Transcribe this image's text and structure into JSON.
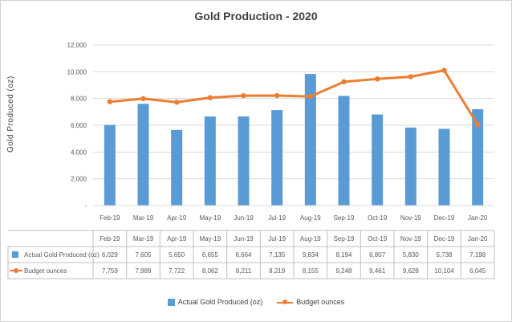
{
  "chart_data": {
    "type": "bar",
    "title": "Gold Production - 2020",
    "ylabel": "Gold Produced (oz)",
    "xlabel": "",
    "ylim": [
      0,
      12000
    ],
    "yticks": [
      "-",
      "2,000",
      "4,000",
      "6,000",
      "8,000",
      "10,000",
      "12,000"
    ],
    "categories": [
      "Feb-19",
      "Mar-19",
      "Apr-19",
      "May-19",
      "Jun-19",
      "Jul-19",
      "Aug-19",
      "Sep-19",
      "Oct-19",
      "Nov-19",
      "Dec-19",
      "Jan-20"
    ],
    "series": [
      {
        "name": "Actual Gold Produced (oz)",
        "kind": "bar",
        "color": "#5b9bd5",
        "values": [
          6029,
          7605,
          5650,
          6655,
          6664,
          7135,
          9834,
          8194,
          6807,
          5830,
          5738,
          7198
        ],
        "labels": [
          "6,029",
          "7,605",
          "5,650",
          "6,655",
          "6,664",
          "7,135",
          "9,834",
          "8,194",
          "6,807",
          "5,830",
          "5,738",
          "7,198"
        ]
      },
      {
        "name": "Budget ounces",
        "kind": "line",
        "color": "#ed7d31",
        "values": [
          7759,
          7989,
          7722,
          8062,
          8211,
          8219,
          8155,
          9248,
          9461,
          9628,
          10104,
          6045
        ],
        "labels": [
          "7,759",
          "7,989",
          "7,722",
          "8,062",
          "8,211",
          "8,219",
          "8,155",
          "9,248",
          "9,461",
          "9,628",
          "10,104",
          "6,045"
        ]
      }
    ],
    "grid": true,
    "legend": "bottom",
    "data_table": true
  }
}
